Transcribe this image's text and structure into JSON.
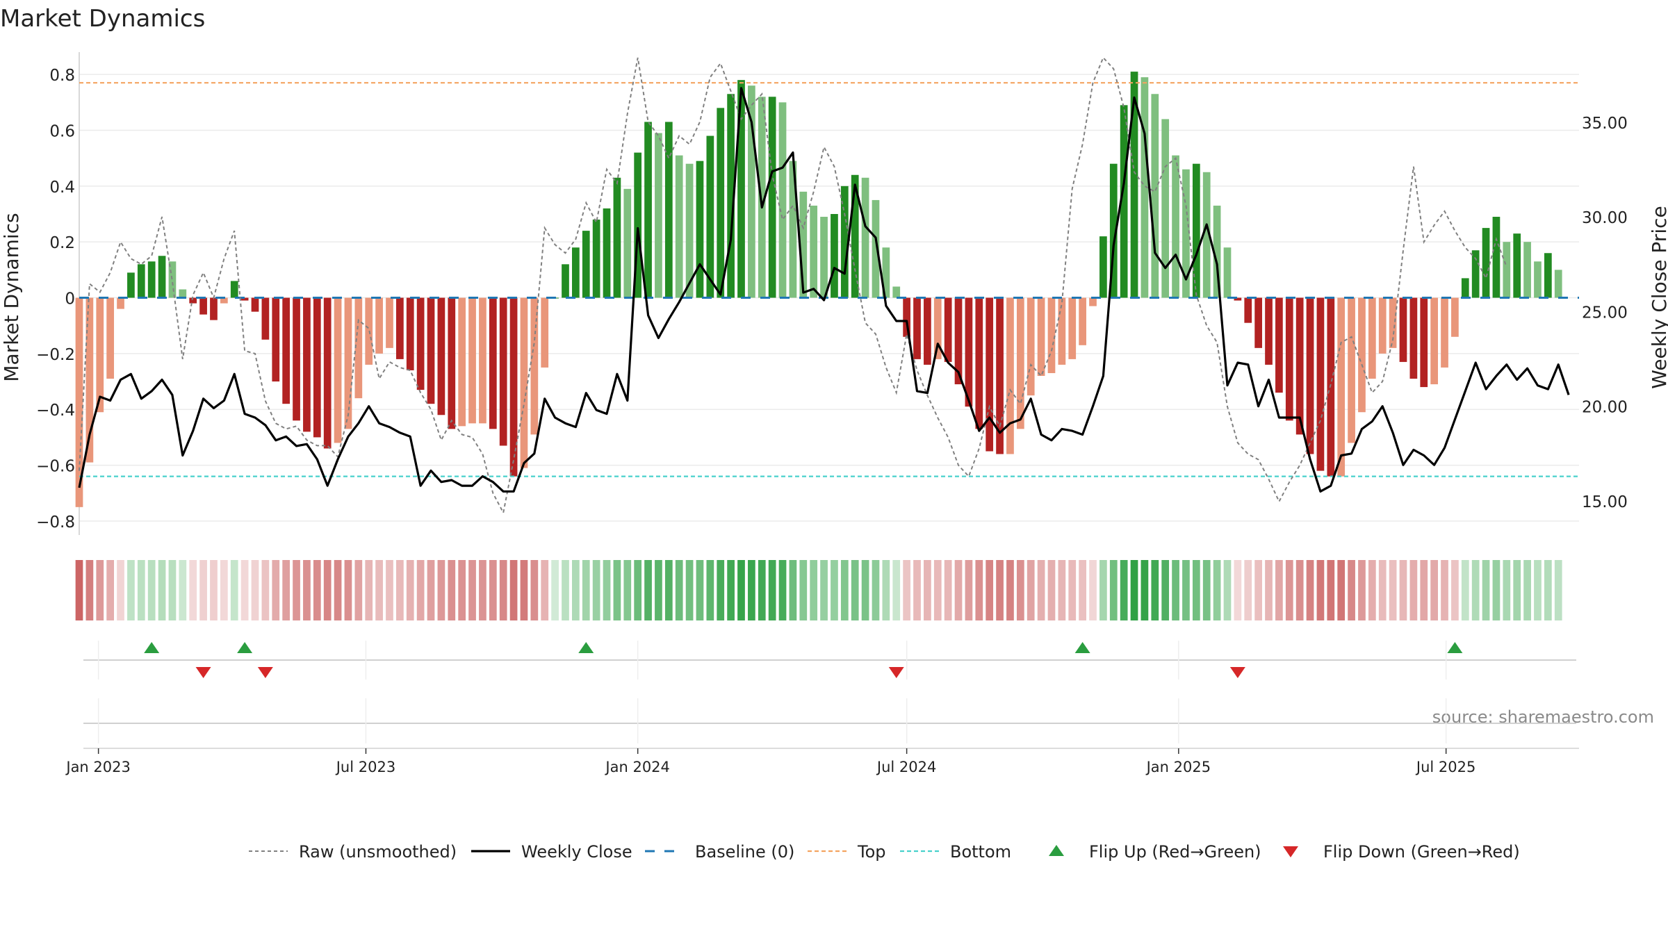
{
  "chart_data": {
    "type": "bar",
    "title": "Market Dynamics",
    "ylabel": "Market Dynamics",
    "y2label": "Weekly Close Price",
    "ylim": [
      -0.85,
      0.88
    ],
    "y2lim": [
      13.2,
      38.7
    ],
    "yticks": [
      -0.8,
      -0.6,
      -0.4,
      -0.2,
      0,
      0.2,
      0.4,
      0.6,
      0.8
    ],
    "ytick_labels": [
      "−0.8",
      "−0.6",
      "−0.4",
      "−0.2",
      "0",
      "0.2",
      "0.4",
      "0.6",
      "0.8"
    ],
    "y2ticks": [
      15,
      20,
      25,
      30,
      35
    ],
    "y2tick_labels": [
      "15.00",
      "20.00",
      "25.00",
      "30.00",
      "35.00"
    ],
    "x_start": "2022-12-19",
    "x_end": "2025-09-29",
    "xticks": [
      {
        "date": "2023-01-01",
        "label": "Jan 2023"
      },
      {
        "date": "2023-07-01",
        "label": "Jul 2023"
      },
      {
        "date": "2024-01-01",
        "label": "Jan 2024"
      },
      {
        "date": "2024-07-01",
        "label": "Jul 2024"
      },
      {
        "date": "2025-01-01",
        "label": "Jan 2025"
      },
      {
        "date": "2025-07-01",
        "label": "Jul 2025"
      }
    ],
    "first_week": "2022-12-19",
    "top_level": 0.77,
    "bottom_level": -0.64,
    "baseline": 0,
    "series": [
      {
        "name": "Market Dynamics (smoothed)",
        "color_up_strong": "#228b22",
        "color_up_weak": "#7fbf7f",
        "color_down_strong": "#b22222",
        "color_down_weak": "#e9967a",
        "values": [
          -0.75,
          -0.59,
          -0.41,
          -0.29,
          -0.04,
          0.09,
          0.12,
          0.13,
          0.15,
          0.13,
          0.03,
          -0.02,
          -0.06,
          -0.08,
          -0.02,
          0.06,
          -0.01,
          -0.05,
          -0.15,
          -0.3,
          -0.38,
          -0.44,
          -0.48,
          -0.5,
          -0.54,
          -0.52,
          -0.47,
          -0.36,
          -0.24,
          -0.2,
          -0.18,
          -0.22,
          -0.26,
          -0.33,
          -0.38,
          -0.42,
          -0.47,
          -0.46,
          -0.45,
          -0.45,
          -0.47,
          -0.53,
          -0.64,
          -0.61,
          -0.49,
          -0.25,
          0.0,
          0.12,
          0.18,
          0.24,
          0.28,
          0.32,
          0.43,
          0.39,
          0.52,
          0.63,
          0.59,
          0.63,
          0.51,
          0.48,
          0.49,
          0.58,
          0.68,
          0.73,
          0.78,
          0.76,
          0.72,
          0.72,
          0.7,
          0.49,
          0.38,
          0.33,
          0.29,
          0.3,
          0.4,
          0.44,
          0.43,
          0.35,
          0.18,
          0.04,
          -0.14,
          -0.22,
          -0.24,
          -0.22,
          -0.23,
          -0.31,
          -0.39,
          -0.47,
          -0.55,
          -0.56,
          -0.56,
          -0.47,
          -0.35,
          -0.28,
          -0.27,
          -0.24,
          -0.22,
          -0.17,
          -0.03,
          0.22,
          0.48,
          0.69,
          0.81,
          0.79,
          0.73,
          0.64,
          0.51,
          0.46,
          0.48,
          0.45,
          0.33,
          0.18,
          -0.01,
          -0.09,
          -0.18,
          -0.24,
          -0.34,
          -0.44,
          -0.49,
          -0.56,
          -0.62,
          -0.64,
          -0.64,
          -0.52,
          -0.41,
          -0.29,
          -0.2,
          -0.18,
          -0.23,
          -0.29,
          -0.32,
          -0.31,
          -0.25,
          -0.14,
          0.07,
          0.17,
          0.25,
          0.29,
          0.2,
          0.23,
          0.2,
          0.13,
          0.16,
          0.1
        ]
      },
      {
        "name": "Raw (unsmoothed)",
        "color": "#808080",
        "values": [
          -0.62,
          0.05,
          0.02,
          0.09,
          0.2,
          0.14,
          0.12,
          0.15,
          0.29,
          0.06,
          -0.22,
          0.01,
          0.09,
          0.0,
          0.14,
          0.24,
          -0.19,
          -0.2,
          -0.37,
          -0.45,
          -0.47,
          -0.46,
          -0.51,
          -0.53,
          -0.53,
          -0.57,
          -0.42,
          -0.08,
          -0.11,
          -0.29,
          -0.23,
          -0.25,
          -0.26,
          -0.34,
          -0.4,
          -0.51,
          -0.44,
          -0.49,
          -0.5,
          -0.56,
          -0.7,
          -0.77,
          -0.58,
          -0.38,
          -0.16,
          0.25,
          0.19,
          0.16,
          0.21,
          0.34,
          0.27,
          0.46,
          0.41,
          0.66,
          0.86,
          0.63,
          0.58,
          0.5,
          0.58,
          0.55,
          0.63,
          0.79,
          0.84,
          0.74,
          0.64,
          0.69,
          0.73,
          0.44,
          0.28,
          0.33,
          0.25,
          0.38,
          0.54,
          0.47,
          0.3,
          0.1,
          -0.09,
          -0.13,
          -0.25,
          -0.34,
          -0.13,
          -0.26,
          -0.35,
          -0.43,
          -0.5,
          -0.6,
          -0.64,
          -0.54,
          -0.39,
          -0.46,
          -0.33,
          -0.38,
          -0.24,
          -0.28,
          -0.19,
          -0.02,
          0.39,
          0.55,
          0.77,
          0.86,
          0.82,
          0.68,
          0.45,
          0.4,
          0.38,
          0.47,
          0.5,
          0.33,
          0.01,
          -0.1,
          -0.16,
          -0.39,
          -0.52,
          -0.56,
          -0.58,
          -0.65,
          -0.73,
          -0.66,
          -0.6,
          -0.52,
          -0.44,
          -0.31,
          -0.16,
          -0.14,
          -0.24,
          -0.34,
          -0.3,
          -0.15,
          0.17,
          0.47,
          0.2,
          0.26,
          0.31,
          0.24,
          0.18,
          0.14,
          0.07,
          0.21,
          0.11
        ]
      },
      {
        "name": "Weekly Close",
        "axis": "right",
        "color": "#000000",
        "values": [
          15.7,
          18.5,
          20.5,
          20.3,
          21.4,
          21.7,
          20.4,
          20.8,
          21.4,
          20.6,
          17.4,
          18.7,
          20.4,
          19.9,
          20.3,
          21.7,
          19.6,
          19.4,
          19.0,
          18.2,
          18.4,
          17.9,
          18.0,
          17.2,
          15.8,
          17.2,
          18.4,
          19.1,
          20.0,
          19.1,
          18.9,
          18.6,
          18.4,
          15.8,
          16.6,
          16.0,
          16.1,
          15.8,
          15.8,
          16.3,
          16.0,
          15.5,
          15.5,
          17.0,
          17.5,
          20.4,
          19.4,
          19.1,
          18.9,
          20.7,
          19.8,
          19.6,
          21.7,
          20.3,
          29.4,
          24.8,
          23.6,
          24.6,
          25.5,
          26.5,
          27.5,
          26.7,
          25.9,
          28.8,
          36.8,
          35.0,
          30.5,
          32.4,
          32.6,
          33.4,
          26.0,
          26.2,
          25.6,
          27.3,
          27.0,
          31.7,
          29.5,
          28.9,
          25.3,
          24.5,
          24.5,
          20.8,
          20.7,
          23.3,
          22.3,
          21.8,
          20.3,
          18.7,
          19.4,
          18.6,
          19.1,
          19.3,
          20.4,
          18.5,
          18.2,
          18.8,
          18.7,
          18.5,
          20.0,
          21.6,
          28.5,
          31.8,
          36.3,
          34.4,
          28.1,
          27.3,
          28.0,
          26.7,
          28.0,
          29.6,
          27.5,
          21.1,
          22.3,
          22.2,
          20.0,
          21.4,
          19.4,
          19.4,
          19.4,
          17.2,
          15.5,
          15.8,
          17.4,
          17.5,
          18.8,
          19.2,
          20.0,
          18.6,
          16.9,
          17.7,
          17.4,
          16.9,
          17.8,
          19.3,
          20.8,
          22.3,
          20.9,
          21.6,
          22.2,
          21.4,
          22.0,
          21.1,
          20.9,
          22.2,
          20.6
        ]
      }
    ],
    "regime_strip": {
      "description": "background regime strip coloured by smoothed value"
    },
    "flip_up_dates": [
      "2023-02-06",
      "2023-04-10",
      "2023-11-27",
      "2024-10-28",
      "2025-07-07"
    ],
    "flip_down_dates": [
      "2023-03-13",
      "2023-04-24",
      "2024-06-24",
      "2025-02-10"
    ],
    "colors": {
      "baseline": "#1f77b4",
      "top": "#f4a460",
      "bottom": "#48d1cc",
      "flip_up": "#2a9d3f",
      "flip_down": "#d62728",
      "grid": "#ebebeb",
      "text": "#222222"
    },
    "source": "source: sharemaestro.com",
    "legend": [
      {
        "key": "raw",
        "label": "Raw (unsmoothed)"
      },
      {
        "key": "close",
        "label": "Weekly Close"
      },
      {
        "key": "baseline",
        "label": "Baseline (0)"
      },
      {
        "key": "top",
        "label": "Top"
      },
      {
        "key": "bottom",
        "label": "Bottom"
      },
      {
        "key": "flipup",
        "label": "Flip Up (Red→Green)"
      },
      {
        "key": "flipdown",
        "label": "Flip Down (Green→Red)"
      }
    ]
  }
}
